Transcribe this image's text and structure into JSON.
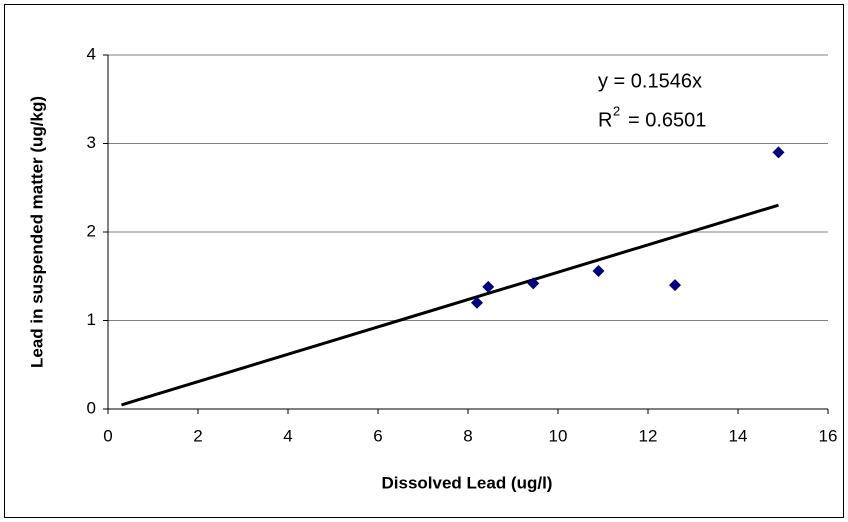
{
  "chart_data": {
    "type": "scatter",
    "x_label": "Dissolved Lead (ug/l)",
    "y_label": "Lead in suspended matter (ug/kg)",
    "equation": "y = 0.1546x",
    "r2_symbol": "R",
    "r2_exponent": "2",
    "r2_value": "= 0.6501",
    "x": [
      8.2,
      8.45,
      9.45,
      10.9,
      12.6,
      14.9
    ],
    "series": [
      {
        "color": "#000080",
        "values": [
          1.2,
          1.38,
          1.42,
          1.56,
          1.4,
          2.9
        ]
      }
    ],
    "trendline": {
      "slope": 0.1546,
      "x_range": [
        0.3,
        14.9
      ],
      "color": "#000000"
    },
    "xlim": [
      0,
      16
    ],
    "ylim": [
      0,
      4
    ],
    "xticks": [
      0,
      2,
      4,
      6,
      8,
      10,
      12,
      14,
      16
    ],
    "yticks": [
      0,
      1,
      2,
      3,
      4
    ],
    "grid": true
  }
}
